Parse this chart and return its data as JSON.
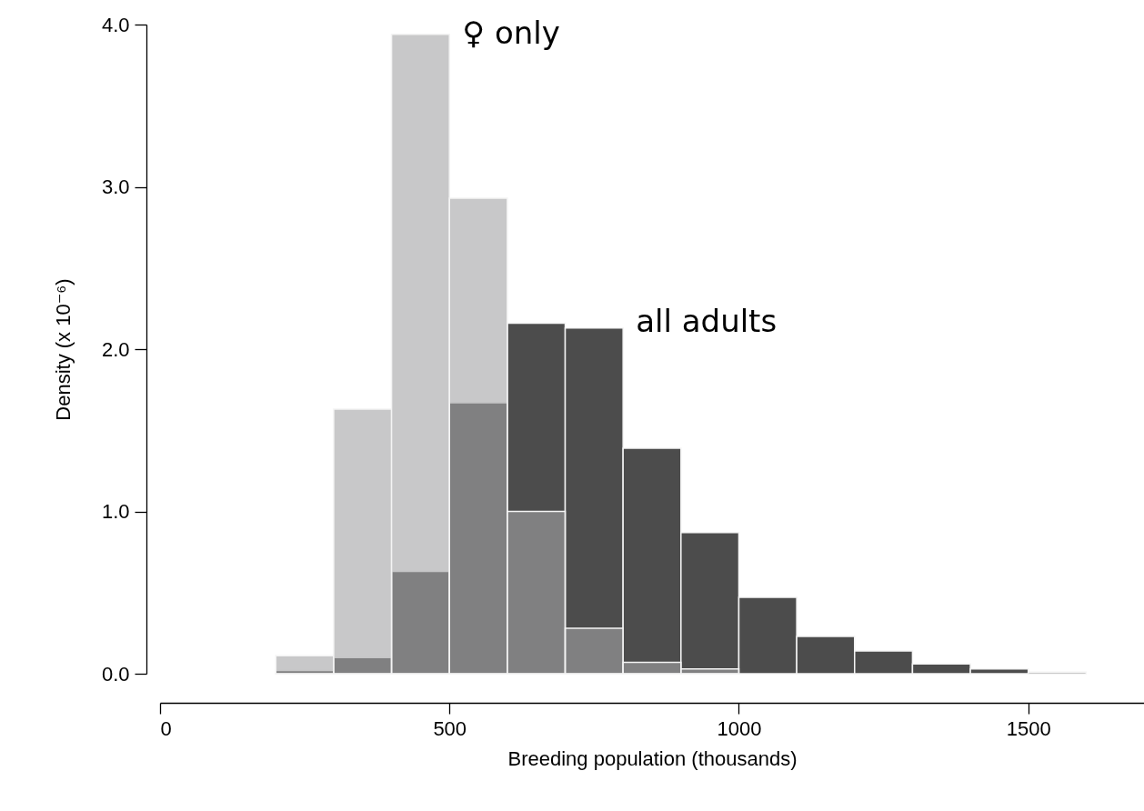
{
  "chart_data": {
    "type": "histogram",
    "xlabel": "Breeding population (thousands)",
    "ylabel": "Density (x 10⁻⁶)",
    "bins": [
      200,
      300,
      400,
      500,
      600,
      700,
      800,
      900,
      1000,
      1100,
      1200,
      1300,
      1400,
      1500,
      1600,
      1700
    ],
    "series": [
      {
        "name": "all adults",
        "color": "#4c4c4c",
        "values": [
          0.02,
          0.1,
          0.63,
          1.67,
          2.16,
          2.13,
          1.39,
          0.87,
          0.47,
          0.23,
          0.14,
          0.06,
          0.03,
          0.01,
          null
        ]
      },
      {
        "name": "♀ only",
        "color": "#a3a3a5",
        "values": [
          0.11,
          1.63,
          3.94,
          2.93,
          1.0,
          0.28,
          0.07,
          0.03,
          null,
          null,
          null,
          null,
          null,
          null,
          null
        ]
      }
    ],
    "xlim": [
      0,
      1700
    ],
    "ylim": [
      0,
      4
    ],
    "xticks": [
      0,
      500,
      1000,
      1500
    ],
    "yticks": [
      {
        "value": 0,
        "label": "0.0"
      },
      {
        "value": 1,
        "label": "1.0"
      },
      {
        "value": 2,
        "label": "2.0"
      },
      {
        "value": 3,
        "label": "3.0"
      },
      {
        "value": 4,
        "label": "4.0"
      }
    ],
    "grid": false,
    "legend": false
  }
}
